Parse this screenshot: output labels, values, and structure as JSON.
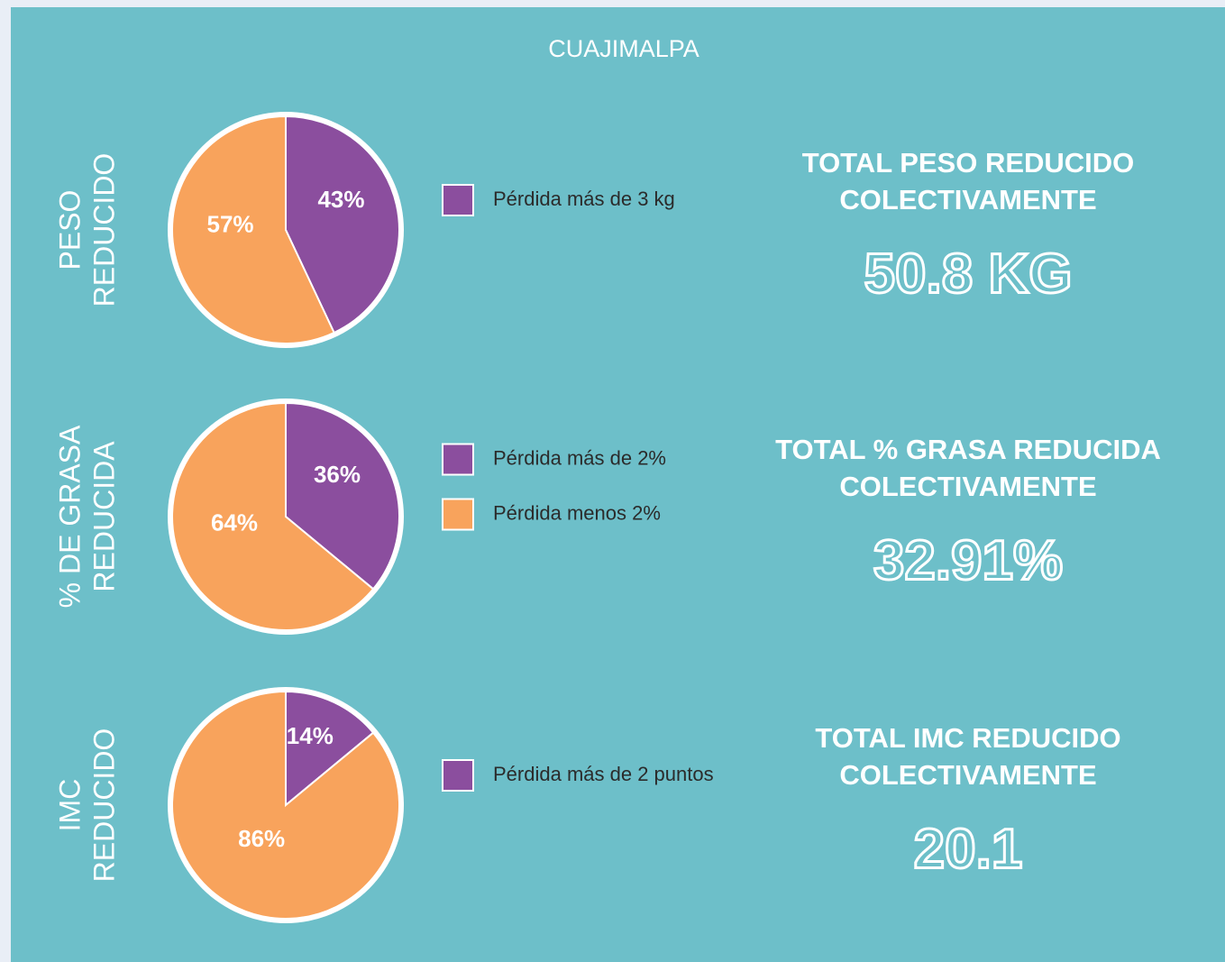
{
  "title": "CUAJIMALPA",
  "chart_data": [
    {
      "type": "pie",
      "title": [
        "PESO",
        "REDUCIDO"
      ],
      "categories": [
        "Pérdida más de 3 kg",
        null
      ],
      "values": [
        43,
        57
      ],
      "value_labels": [
        "43%",
        "57%"
      ],
      "colors": [
        "#8b4e9e",
        "#f8a35c"
      ],
      "summary_title": [
        "TOTAL PESO REDUCIDO",
        "COLECTIVAMENTE"
      ],
      "summary_value": "50.8 KG"
    },
    {
      "type": "pie",
      "title": [
        "% DE GRASA",
        "REDUCIDA"
      ],
      "categories": [
        "Pérdida más de 2%",
        "Pérdida menos 2%"
      ],
      "values": [
        36,
        64
      ],
      "value_labels": [
        "36%",
        "64%"
      ],
      "colors": [
        "#8b4e9e",
        "#f8a35c"
      ],
      "summary_title": [
        "TOTAL % GRASA REDUCIDA",
        "COLECTIVAMENTE"
      ],
      "summary_value": "32.91%"
    },
    {
      "type": "pie",
      "title": [
        "IMC",
        "REDUCIDO"
      ],
      "categories": [
        "Pérdida más de 2 puntos",
        null
      ],
      "values": [
        14,
        86
      ],
      "value_labels": [
        "14%",
        "86%"
      ],
      "colors": [
        "#8b4e9e",
        "#f8a35c"
      ],
      "summary_title": [
        "TOTAL IMC REDUCIDO",
        "COLECTIVAMENTE"
      ],
      "summary_value": "20.1"
    }
  ]
}
